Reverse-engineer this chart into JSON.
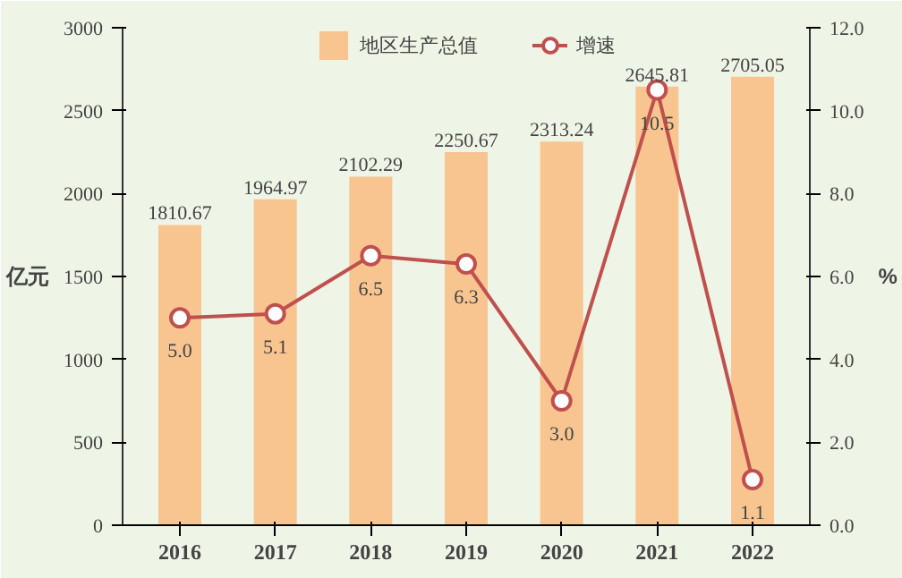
{
  "chart_data": {
    "type": "bar",
    "categories": [
      "2016",
      "2017",
      "2018",
      "2019",
      "2020",
      "2021",
      "2022"
    ],
    "ylabel": "亿元",
    "y2label": "%",
    "series": [
      {
        "name": "地区生产总值",
        "color": "#f8c590",
        "values": [
          1810.67,
          1964.97,
          2102.29,
          2250.67,
          2313.24,
          2645.81,
          2705.05
        ],
        "value_labels": [
          "1810.67",
          "1964.97",
          "2102.29",
          "2250.67",
          "2313.24",
          "2645.81",
          "2705.05"
        ]
      },
      {
        "name": "增速",
        "type": "line",
        "axis": "y2",
        "color": "#c0504d",
        "marker": "circle",
        "values": [
          5.0,
          5.1,
          6.5,
          6.3,
          3.0,
          10.5,
          1.1
        ],
        "value_labels": [
          "5.0",
          "5.1",
          "6.5",
          "6.3",
          "3.0",
          "10.5",
          "1.1"
        ]
      }
    ],
    "ylim": [
      0,
      3000
    ],
    "yticks": [
      0,
      500,
      1000,
      1500,
      2000,
      2500,
      3000
    ],
    "y2lim": [
      0,
      12
    ],
    "y2ticks": [
      {
        "value": 0,
        "label": "0.0"
      },
      {
        "value": 2,
        "label": "2.0"
      },
      {
        "value": 4,
        "label": "4.0"
      },
      {
        "value": 6,
        "label": "6.0"
      },
      {
        "value": 8,
        "label": "8.0"
      },
      {
        "value": 10,
        "label": "10.0"
      },
      {
        "value": 12,
        "label": "12.0"
      }
    ],
    "grid": false,
    "legend": "top"
  }
}
